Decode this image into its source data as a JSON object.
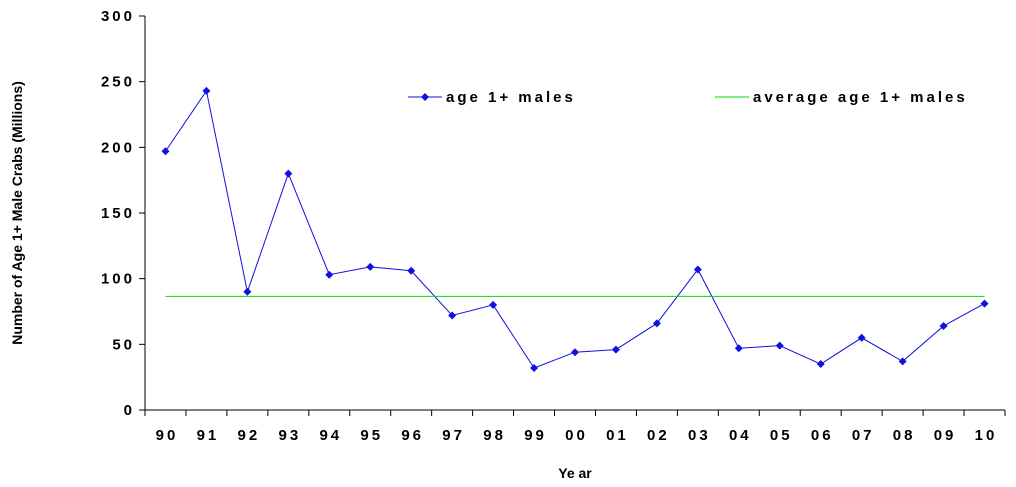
{
  "chart_data": {
    "type": "line",
    "title": "",
    "xlabel": "Ye ar",
    "ylabel": "Number of Age 1+ Male Crabs (Millions)",
    "categories": [
      "90",
      "91",
      "92",
      "93",
      "94",
      "95",
      "96",
      "97",
      "98",
      "99",
      "00",
      "01",
      "02",
      "03",
      "04",
      "05",
      "06",
      "07",
      "08",
      "09",
      "10"
    ],
    "ylim": [
      0,
      300
    ],
    "yticks": [
      "0",
      "50",
      "100",
      "150",
      "200",
      "250",
      "300"
    ],
    "series": [
      {
        "name": "age 1+ males",
        "color": "#1010e0",
        "marker": "diamond",
        "values": [
          197,
          243,
          90,
          180,
          103,
          109,
          106,
          72,
          80,
          32,
          44,
          46,
          66,
          107,
          47,
          49,
          35,
          55,
          37,
          64,
          81
        ]
      },
      {
        "name": "average age 1+ males",
        "color": "#00dd00",
        "marker": "none",
        "values": [
          86.5,
          86.5,
          86.5,
          86.5,
          86.5,
          86.5,
          86.5,
          86.5,
          86.5,
          86.5,
          86.5,
          86.5,
          86.5,
          86.5,
          86.5,
          86.5,
          86.5,
          86.5,
          86.5,
          86.5,
          86.5
        ]
      }
    ],
    "legend_position": "top",
    "grid": false
  }
}
